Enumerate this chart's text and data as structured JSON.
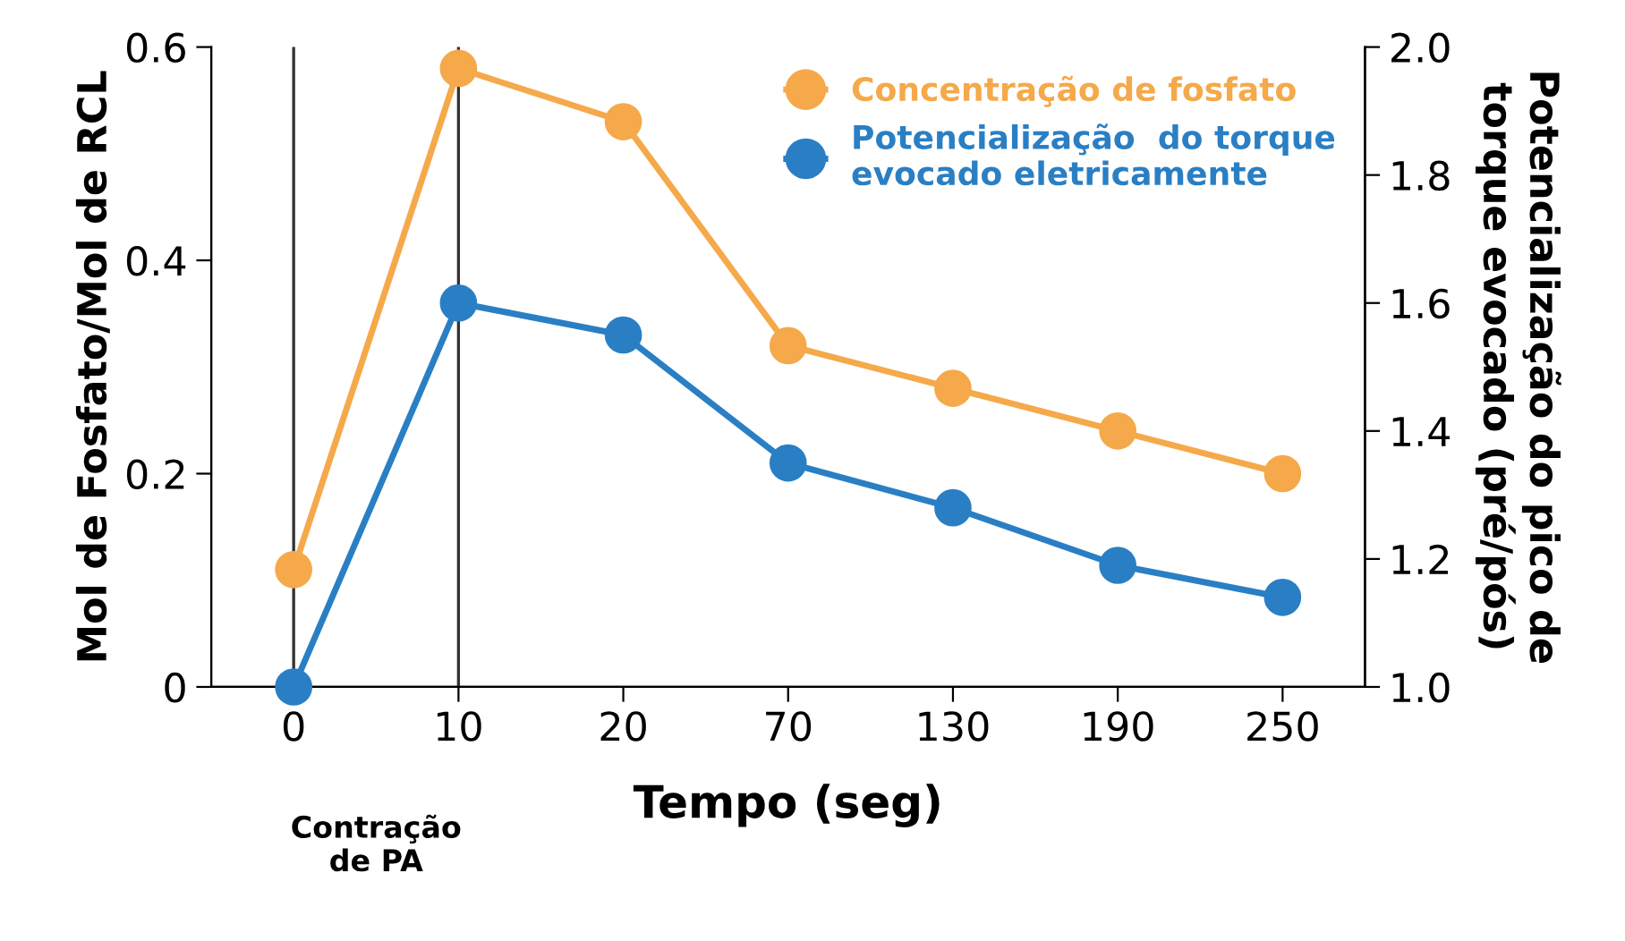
{
  "chart_data": {
    "type": "line",
    "xlabel": "Tempo (seg)",
    "ylabel": "Mol de Fosfato/Mol de RCL",
    "y2label": "Potencialização do pico de\ntorque evocado (pré/pós)",
    "categories": [
      "0",
      "10",
      "20",
      "70",
      "130",
      "190",
      "250"
    ],
    "series": [
      {
        "name": "Concentração de fosfato",
        "color": "#f5a94a",
        "values": [
          0.11,
          0.58,
          0.53,
          0.32,
          0.28,
          0.24,
          0.2
        ]
      },
      {
        "name": "Potencialização  do torque\nevocado eletricamente",
        "color": "#2a7fc4",
        "axis": "y2",
        "values": [
          1.0,
          1.6,
          1.55,
          1.35,
          1.28,
          1.19,
          1.14
        ]
      }
    ],
    "ylim": [
      0,
      0.6
    ],
    "yticks": [
      0,
      0.2,
      0.4,
      0.6
    ],
    "y2lim": [
      1.0,
      2.0
    ],
    "y2ticks": [
      {
        "value": 1.0,
        "label": "1.0"
      },
      {
        "value": 1.2,
        "label": "1.2"
      },
      {
        "value": 1.4,
        "label": "1.4"
      },
      {
        "value": 1.6,
        "label": "1.6"
      },
      {
        "value": 1.8,
        "label": "1.8"
      },
      {
        "value": 2.0,
        "label": "2.0"
      }
    ],
    "ref_lines": [
      {
        "axis": "x",
        "value": "0",
        "color": "#333333"
      },
      {
        "axis": "x",
        "value": "10",
        "color": "#333333"
      }
    ],
    "annotations": [
      "Contração\nde PA"
    ],
    "marker": "circle",
    "legend": "top right",
    "grid": false
  }
}
